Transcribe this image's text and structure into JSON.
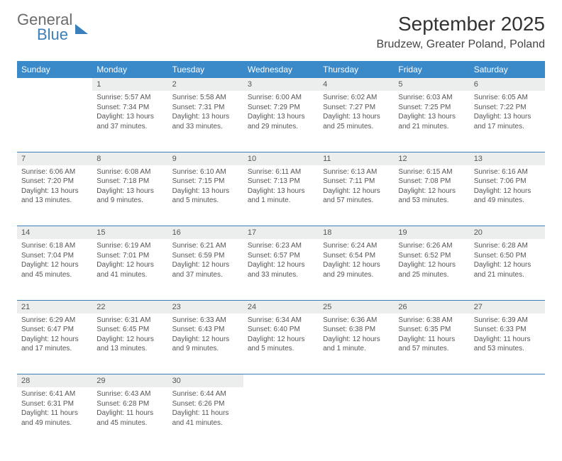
{
  "brand": {
    "line1": "General",
    "line2": "Blue"
  },
  "title": "September 2025",
  "location": "Brudzew, Greater Poland, Poland",
  "colors": {
    "header_bg": "#3a89c9",
    "rule": "#3a7fba",
    "daynum_bg": "#eceded",
    "text": "#555"
  },
  "day_headers": [
    "Sunday",
    "Monday",
    "Tuesday",
    "Wednesday",
    "Thursday",
    "Friday",
    "Saturday"
  ],
  "weeks": [
    [
      null,
      {
        "n": "1",
        "sr": "Sunrise: 5:57 AM",
        "ss": "Sunset: 7:34 PM",
        "dl": "Daylight: 13 hours and 37 minutes."
      },
      {
        "n": "2",
        "sr": "Sunrise: 5:58 AM",
        "ss": "Sunset: 7:31 PM",
        "dl": "Daylight: 13 hours and 33 minutes."
      },
      {
        "n": "3",
        "sr": "Sunrise: 6:00 AM",
        "ss": "Sunset: 7:29 PM",
        "dl": "Daylight: 13 hours and 29 minutes."
      },
      {
        "n": "4",
        "sr": "Sunrise: 6:02 AM",
        "ss": "Sunset: 7:27 PM",
        "dl": "Daylight: 13 hours and 25 minutes."
      },
      {
        "n": "5",
        "sr": "Sunrise: 6:03 AM",
        "ss": "Sunset: 7:25 PM",
        "dl": "Daylight: 13 hours and 21 minutes."
      },
      {
        "n": "6",
        "sr": "Sunrise: 6:05 AM",
        "ss": "Sunset: 7:22 PM",
        "dl": "Daylight: 13 hours and 17 minutes."
      }
    ],
    [
      {
        "n": "7",
        "sr": "Sunrise: 6:06 AM",
        "ss": "Sunset: 7:20 PM",
        "dl": "Daylight: 13 hours and 13 minutes."
      },
      {
        "n": "8",
        "sr": "Sunrise: 6:08 AM",
        "ss": "Sunset: 7:18 PM",
        "dl": "Daylight: 13 hours and 9 minutes."
      },
      {
        "n": "9",
        "sr": "Sunrise: 6:10 AM",
        "ss": "Sunset: 7:15 PM",
        "dl": "Daylight: 13 hours and 5 minutes."
      },
      {
        "n": "10",
        "sr": "Sunrise: 6:11 AM",
        "ss": "Sunset: 7:13 PM",
        "dl": "Daylight: 13 hours and 1 minute."
      },
      {
        "n": "11",
        "sr": "Sunrise: 6:13 AM",
        "ss": "Sunset: 7:11 PM",
        "dl": "Daylight: 12 hours and 57 minutes."
      },
      {
        "n": "12",
        "sr": "Sunrise: 6:15 AM",
        "ss": "Sunset: 7:08 PM",
        "dl": "Daylight: 12 hours and 53 minutes."
      },
      {
        "n": "13",
        "sr": "Sunrise: 6:16 AM",
        "ss": "Sunset: 7:06 PM",
        "dl": "Daylight: 12 hours and 49 minutes."
      }
    ],
    [
      {
        "n": "14",
        "sr": "Sunrise: 6:18 AM",
        "ss": "Sunset: 7:04 PM",
        "dl": "Daylight: 12 hours and 45 minutes."
      },
      {
        "n": "15",
        "sr": "Sunrise: 6:19 AM",
        "ss": "Sunset: 7:01 PM",
        "dl": "Daylight: 12 hours and 41 minutes."
      },
      {
        "n": "16",
        "sr": "Sunrise: 6:21 AM",
        "ss": "Sunset: 6:59 PM",
        "dl": "Daylight: 12 hours and 37 minutes."
      },
      {
        "n": "17",
        "sr": "Sunrise: 6:23 AM",
        "ss": "Sunset: 6:57 PM",
        "dl": "Daylight: 12 hours and 33 minutes."
      },
      {
        "n": "18",
        "sr": "Sunrise: 6:24 AM",
        "ss": "Sunset: 6:54 PM",
        "dl": "Daylight: 12 hours and 29 minutes."
      },
      {
        "n": "19",
        "sr": "Sunrise: 6:26 AM",
        "ss": "Sunset: 6:52 PM",
        "dl": "Daylight: 12 hours and 25 minutes."
      },
      {
        "n": "20",
        "sr": "Sunrise: 6:28 AM",
        "ss": "Sunset: 6:50 PM",
        "dl": "Daylight: 12 hours and 21 minutes."
      }
    ],
    [
      {
        "n": "21",
        "sr": "Sunrise: 6:29 AM",
        "ss": "Sunset: 6:47 PM",
        "dl": "Daylight: 12 hours and 17 minutes."
      },
      {
        "n": "22",
        "sr": "Sunrise: 6:31 AM",
        "ss": "Sunset: 6:45 PM",
        "dl": "Daylight: 12 hours and 13 minutes."
      },
      {
        "n": "23",
        "sr": "Sunrise: 6:33 AM",
        "ss": "Sunset: 6:43 PM",
        "dl": "Daylight: 12 hours and 9 minutes."
      },
      {
        "n": "24",
        "sr": "Sunrise: 6:34 AM",
        "ss": "Sunset: 6:40 PM",
        "dl": "Daylight: 12 hours and 5 minutes."
      },
      {
        "n": "25",
        "sr": "Sunrise: 6:36 AM",
        "ss": "Sunset: 6:38 PM",
        "dl": "Daylight: 12 hours and 1 minute."
      },
      {
        "n": "26",
        "sr": "Sunrise: 6:38 AM",
        "ss": "Sunset: 6:35 PM",
        "dl": "Daylight: 11 hours and 57 minutes."
      },
      {
        "n": "27",
        "sr": "Sunrise: 6:39 AM",
        "ss": "Sunset: 6:33 PM",
        "dl": "Daylight: 11 hours and 53 minutes."
      }
    ],
    [
      {
        "n": "28",
        "sr": "Sunrise: 6:41 AM",
        "ss": "Sunset: 6:31 PM",
        "dl": "Daylight: 11 hours and 49 minutes."
      },
      {
        "n": "29",
        "sr": "Sunrise: 6:43 AM",
        "ss": "Sunset: 6:28 PM",
        "dl": "Daylight: 11 hours and 45 minutes."
      },
      {
        "n": "30",
        "sr": "Sunrise: 6:44 AM",
        "ss": "Sunset: 6:26 PM",
        "dl": "Daylight: 11 hours and 41 minutes."
      },
      null,
      null,
      null,
      null
    ]
  ]
}
